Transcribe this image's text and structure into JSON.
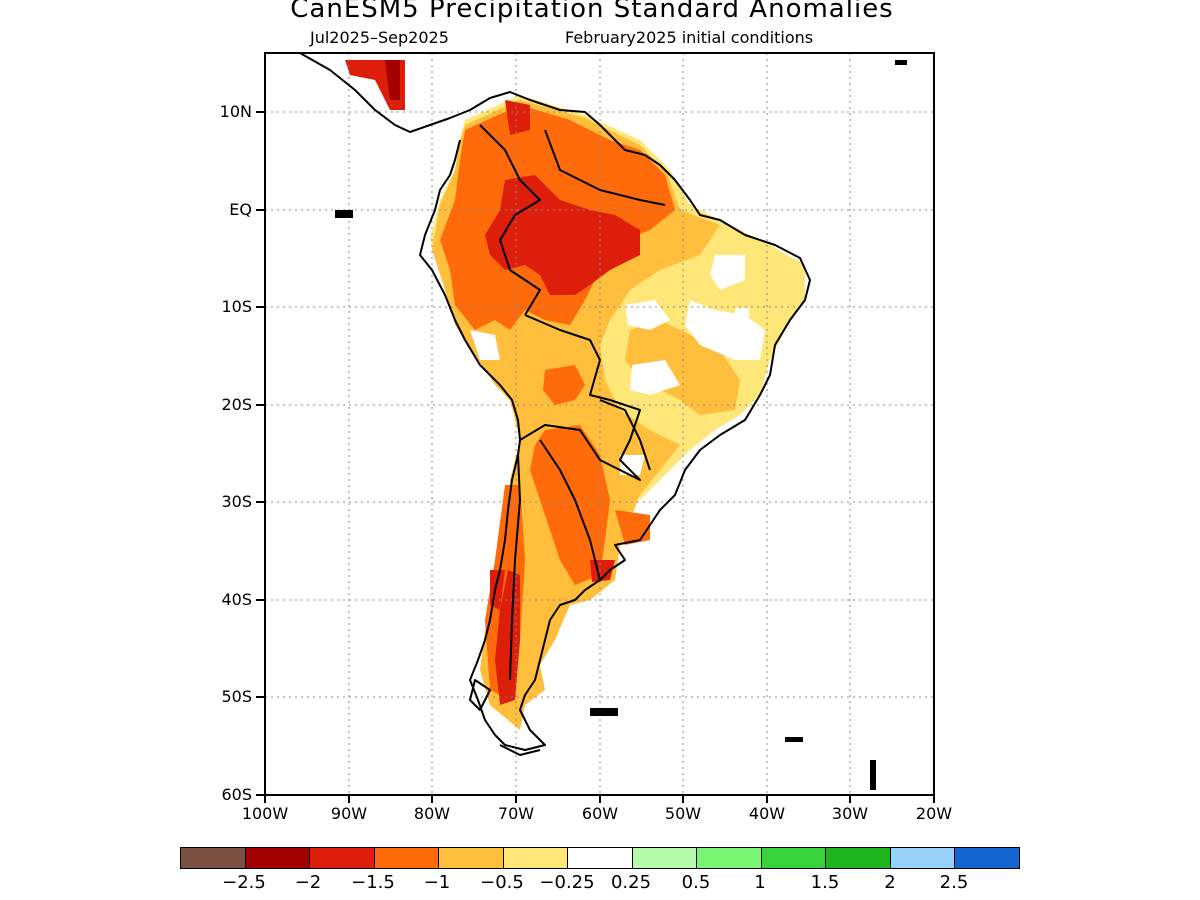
{
  "title": "CanESM5 Precipitation Standard Anomalies",
  "subtitle_left": "Jul2025–Sep2025",
  "subtitle_right": "February2025 initial conditions",
  "lat_labels": [
    "10N",
    "EQ",
    "10S",
    "20S",
    "30S",
    "40S",
    "50S",
    "60S"
  ],
  "lon_labels": [
    "100W",
    "90W",
    "80W",
    "70W",
    "60W",
    "50W",
    "40W",
    "30W",
    "20W"
  ],
  "legend": {
    "colors": [
      "#7a5043",
      "#a50000",
      "#dc1e0a",
      "#ff6a0a",
      "#ffbe3c",
      "#ffe678",
      "#ffffff",
      "#b4faaa",
      "#78f572",
      "#37d23c",
      "#1eb41e",
      "#96d2fa",
      "#1464d2"
    ],
    "labels": [
      "−2.5",
      "−2",
      "−1.5",
      "−1",
      "−0.5",
      "−0.25",
      "0.25",
      "0.5",
      "1",
      "1.5",
      "2",
      "2.5"
    ]
  }
}
